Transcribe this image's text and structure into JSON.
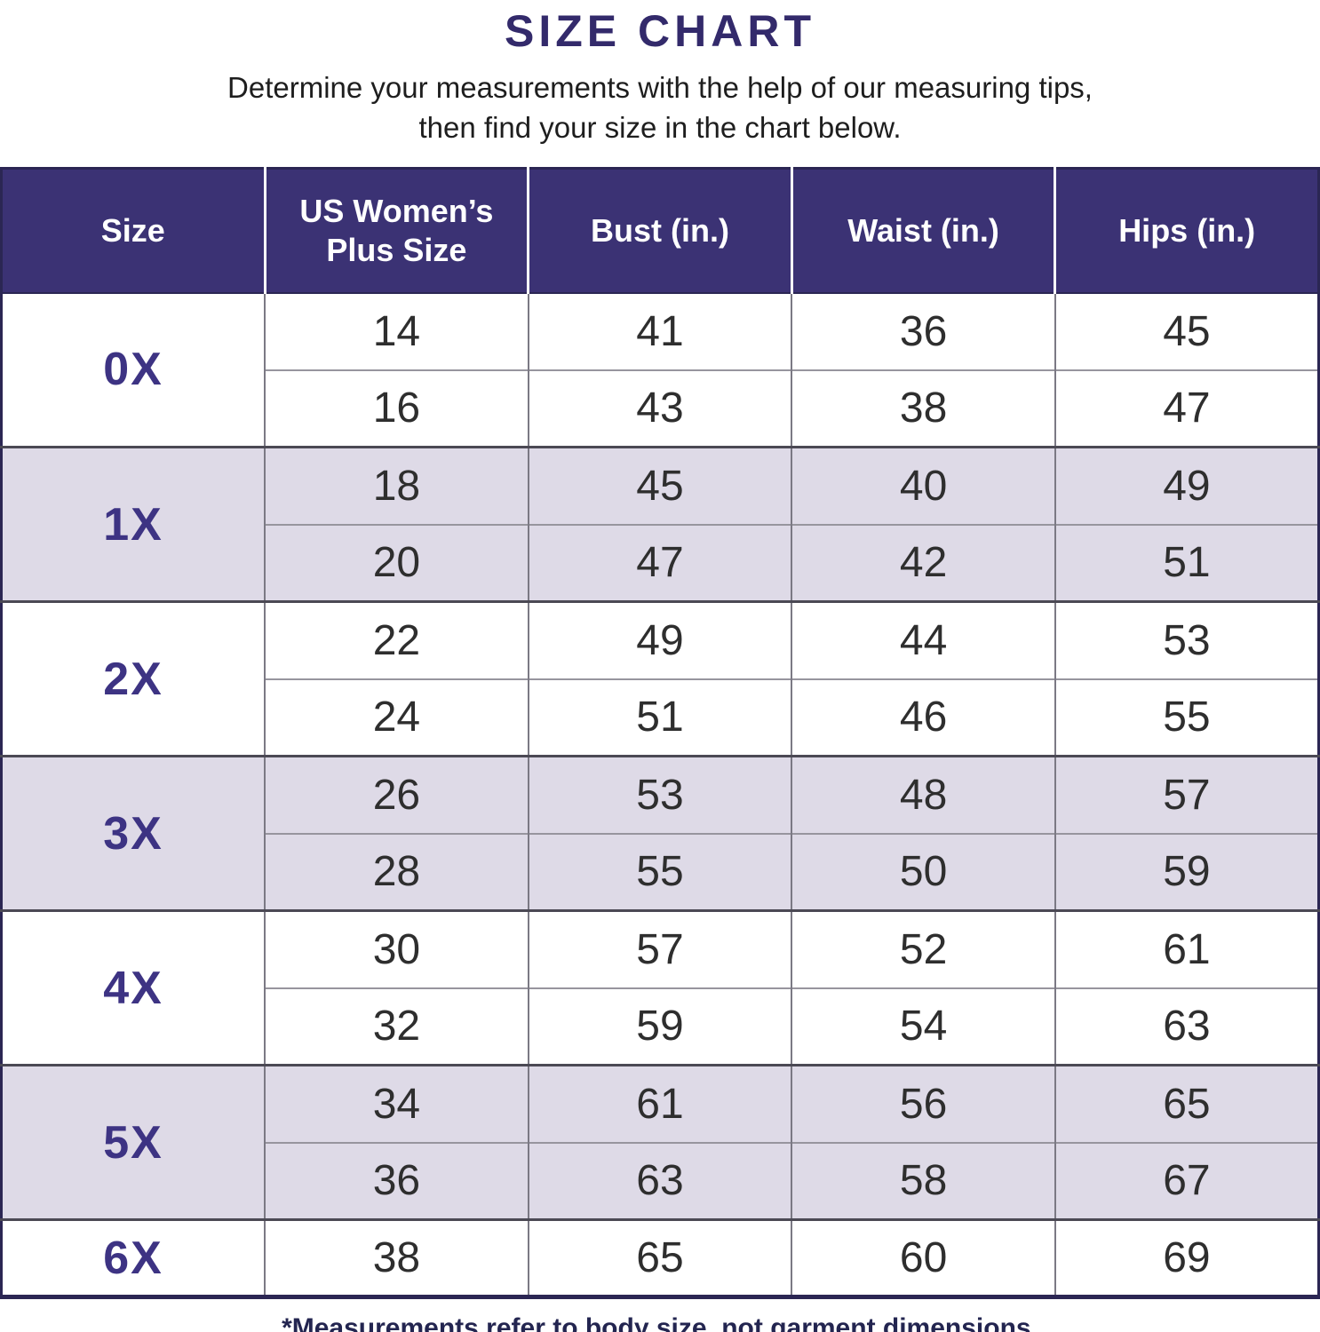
{
  "title": "SIZE CHART",
  "subtitle": {
    "line1": "Determine your measurements with the help of our measuring tips,",
    "line2": "then find your size in the chart below."
  },
  "table": {
    "headers": [
      "Size",
      "US Women’s Plus Size",
      "Bust (in.)",
      "Waist (in.)",
      "Hips (in.)"
    ],
    "groups": [
      {
        "size": "0X",
        "shade": "white",
        "rows": [
          [
            "14",
            "41",
            "36",
            "45"
          ],
          [
            "16",
            "43",
            "38",
            "47"
          ]
        ]
      },
      {
        "size": "1X",
        "shade": "lavender",
        "rows": [
          [
            "18",
            "45",
            "40",
            "49"
          ],
          [
            "20",
            "47",
            "42",
            "51"
          ]
        ]
      },
      {
        "size": "2X",
        "shade": "white",
        "rows": [
          [
            "22",
            "49",
            "44",
            "53"
          ],
          [
            "24",
            "51",
            "46",
            "55"
          ]
        ]
      },
      {
        "size": "3X",
        "shade": "lavender",
        "rows": [
          [
            "26",
            "53",
            "48",
            "57"
          ],
          [
            "28",
            "55",
            "50",
            "59"
          ]
        ]
      },
      {
        "size": "4X",
        "shade": "white",
        "rows": [
          [
            "30",
            "57",
            "52",
            "61"
          ],
          [
            "32",
            "59",
            "54",
            "63"
          ]
        ]
      },
      {
        "size": "5X",
        "shade": "lavender",
        "rows": [
          [
            "34",
            "61",
            "56",
            "65"
          ],
          [
            "36",
            "63",
            "58",
            "67"
          ]
        ]
      },
      {
        "size": "6X",
        "shade": "white",
        "rows": [
          [
            "38",
            "65",
            "60",
            "69"
          ]
        ]
      }
    ]
  },
  "footnote": "*Measurements refer to body size, not garment dimensions.",
  "colors": {
    "header_background": "#3b3274",
    "header_text": "#ffffff",
    "title_text": "#332a6b",
    "size_label_text": "#3d3383",
    "lavender_row": "#dedae7",
    "white_row": "#ffffff",
    "outer_border": "#2b2653",
    "footnote_text": "#232550"
  }
}
